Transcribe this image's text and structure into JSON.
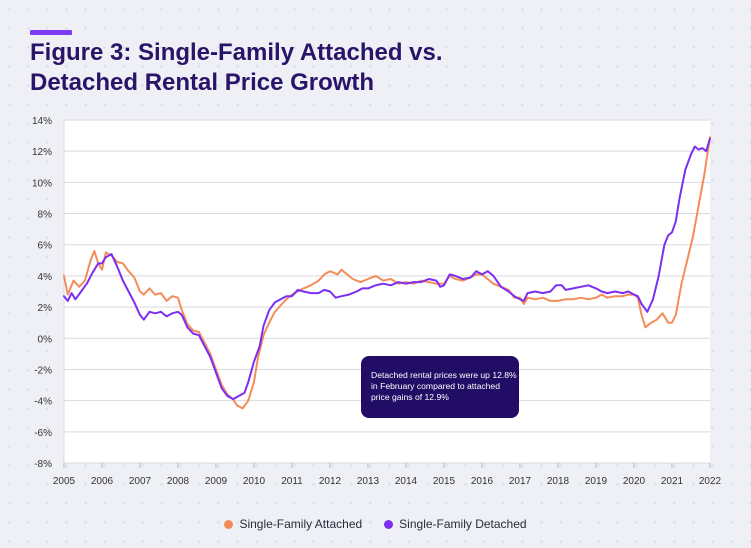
{
  "figure": {
    "title_line1": "Figure 3: Single-Family Attached vs.",
    "title_line2": "Detached Rental Price Growth"
  },
  "callout_text": "Detached rental prices were up 12.8% in February compared to attached price gains of 12.9%",
  "colors": {
    "accent": "#7b3cf3",
    "attached": "#f48c5a",
    "detached": "#7b2ff2",
    "callout_bg": "#210d66"
  },
  "chart_data": {
    "type": "line",
    "ylim": [
      -8,
      14
    ],
    "xlim": [
      2005,
      2022
    ],
    "y_ticks": [
      14,
      12,
      10,
      8,
      6,
      4,
      2,
      0,
      -2,
      -4,
      -6,
      -8
    ],
    "y_tick_labels": [
      "14%",
      "12%",
      "10%",
      "8%",
      "6%",
      "4%",
      "2%",
      "0%",
      "-2%",
      "-4%",
      "-6%",
      "-8%"
    ],
    "x_ticks": [
      2005,
      2006,
      2007,
      2008,
      2009,
      2010,
      2011,
      2012,
      2013,
      2014,
      2015,
      2016,
      2017,
      2018,
      2019,
      2020,
      2021,
      2022
    ],
    "x_tick_labels": [
      "2005",
      "2006",
      "2007",
      "2008",
      "2009",
      "2010",
      "2011",
      "2012",
      "2013",
      "2014",
      "2015",
      "2016",
      "2017",
      "2018",
      "2019",
      "2020",
      "2021",
      "2022"
    ],
    "grid": "horizontal",
    "legend_position": "bottom-center",
    "series": [
      {
        "name": "Single-Family Attached",
        "color": "#f48c5a",
        "points": [
          [
            2005.0,
            4.0
          ],
          [
            2005.1,
            2.8
          ],
          [
            2005.25,
            3.7
          ],
          [
            2005.4,
            3.3
          ],
          [
            2005.55,
            3.7
          ],
          [
            2005.7,
            5.0
          ],
          [
            2005.8,
            5.6
          ],
          [
            2005.9,
            4.8
          ],
          [
            2006.0,
            4.4
          ],
          [
            2006.1,
            5.5
          ],
          [
            2006.25,
            5.3
          ],
          [
            2006.4,
            4.9
          ],
          [
            2006.55,
            4.8
          ],
          [
            2006.7,
            4.3
          ],
          [
            2006.85,
            3.9
          ],
          [
            2007.0,
            3.0
          ],
          [
            2007.1,
            2.8
          ],
          [
            2007.25,
            3.2
          ],
          [
            2007.4,
            2.8
          ],
          [
            2007.55,
            2.9
          ],
          [
            2007.7,
            2.4
          ],
          [
            2007.85,
            2.7
          ],
          [
            2008.0,
            2.6
          ],
          [
            2008.1,
            1.8
          ],
          [
            2008.25,
            0.9
          ],
          [
            2008.4,
            0.5
          ],
          [
            2008.55,
            0.4
          ],
          [
            2008.7,
            -0.3
          ],
          [
            2008.85,
            -1.0
          ],
          [
            2009.0,
            -2.0
          ],
          [
            2009.15,
            -3.0
          ],
          [
            2009.3,
            -3.6
          ],
          [
            2009.45,
            -3.9
          ],
          [
            2009.55,
            -4.3
          ],
          [
            2009.7,
            -4.5
          ],
          [
            2009.85,
            -4.0
          ],
          [
            2010.0,
            -2.8
          ],
          [
            2010.1,
            -1.3
          ],
          [
            2010.25,
            0.2
          ],
          [
            2010.4,
            1.0
          ],
          [
            2010.55,
            1.7
          ],
          [
            2010.7,
            2.1
          ],
          [
            2010.85,
            2.5
          ],
          [
            2011.0,
            2.8
          ],
          [
            2011.15,
            3.0
          ],
          [
            2011.3,
            3.2
          ],
          [
            2011.5,
            3.4
          ],
          [
            2011.7,
            3.7
          ],
          [
            2011.85,
            4.1
          ],
          [
            2012.0,
            4.3
          ],
          [
            2012.2,
            4.1
          ],
          [
            2012.3,
            4.4
          ],
          [
            2012.45,
            4.1
          ],
          [
            2012.6,
            3.8
          ],
          [
            2012.8,
            3.6
          ],
          [
            2013.0,
            3.8
          ],
          [
            2013.2,
            4.0
          ],
          [
            2013.4,
            3.7
          ],
          [
            2013.6,
            3.8
          ],
          [
            2013.8,
            3.5
          ],
          [
            2014.0,
            3.6
          ],
          [
            2014.2,
            3.5
          ],
          [
            2014.4,
            3.7
          ],
          [
            2014.6,
            3.6
          ],
          [
            2014.8,
            3.5
          ],
          [
            2015.0,
            3.5
          ],
          [
            2015.15,
            4.0
          ],
          [
            2015.3,
            3.8
          ],
          [
            2015.5,
            3.7
          ],
          [
            2015.7,
            3.9
          ],
          [
            2015.85,
            4.1
          ],
          [
            2016.0,
            4.1
          ],
          [
            2016.15,
            3.8
          ],
          [
            2016.3,
            3.5
          ],
          [
            2016.5,
            3.3
          ],
          [
            2016.7,
            3.1
          ],
          [
            2016.85,
            2.6
          ],
          [
            2017.0,
            2.6
          ],
          [
            2017.1,
            2.2
          ],
          [
            2017.2,
            2.6
          ],
          [
            2017.4,
            2.5
          ],
          [
            2017.6,
            2.6
          ],
          [
            2017.8,
            2.4
          ],
          [
            2018.0,
            2.4
          ],
          [
            2018.2,
            2.5
          ],
          [
            2018.4,
            2.5
          ],
          [
            2018.6,
            2.6
          ],
          [
            2018.8,
            2.5
          ],
          [
            2019.0,
            2.6
          ],
          [
            2019.15,
            2.8
          ],
          [
            2019.3,
            2.6
          ],
          [
            2019.5,
            2.7
          ],
          [
            2019.7,
            2.7
          ],
          [
            2019.85,
            2.8
          ],
          [
            2020.0,
            2.8
          ],
          [
            2020.1,
            2.6
          ],
          [
            2020.2,
            1.5
          ],
          [
            2020.3,
            0.7
          ],
          [
            2020.45,
            1.0
          ],
          [
            2020.6,
            1.2
          ],
          [
            2020.75,
            1.6
          ],
          [
            2020.9,
            1.0
          ],
          [
            2021.0,
            1.0
          ],
          [
            2021.1,
            1.5
          ],
          [
            2021.25,
            3.5
          ],
          [
            2021.4,
            5.0
          ],
          [
            2021.55,
            6.5
          ],
          [
            2021.7,
            8.5
          ],
          [
            2021.85,
            10.5
          ],
          [
            2022.0,
            12.9
          ]
        ]
      },
      {
        "name": "Single-Family Detached",
        "color": "#7b2ff2",
        "points": [
          [
            2005.0,
            2.7
          ],
          [
            2005.1,
            2.4
          ],
          [
            2005.2,
            2.9
          ],
          [
            2005.3,
            2.5
          ],
          [
            2005.45,
            3.0
          ],
          [
            2005.6,
            3.5
          ],
          [
            2005.75,
            4.2
          ],
          [
            2005.9,
            4.8
          ],
          [
            2006.0,
            4.8
          ],
          [
            2006.1,
            5.2
          ],
          [
            2006.25,
            5.4
          ],
          [
            2006.4,
            4.6
          ],
          [
            2006.55,
            3.7
          ],
          [
            2006.7,
            3.0
          ],
          [
            2006.85,
            2.3
          ],
          [
            2007.0,
            1.5
          ],
          [
            2007.1,
            1.2
          ],
          [
            2007.25,
            1.7
          ],
          [
            2007.4,
            1.6
          ],
          [
            2007.55,
            1.7
          ],
          [
            2007.7,
            1.4
          ],
          [
            2007.85,
            1.6
          ],
          [
            2008.0,
            1.7
          ],
          [
            2008.1,
            1.5
          ],
          [
            2008.25,
            0.7
          ],
          [
            2008.4,
            0.3
          ],
          [
            2008.55,
            0.2
          ],
          [
            2008.7,
            -0.5
          ],
          [
            2008.85,
            -1.2
          ],
          [
            2009.0,
            -2.2
          ],
          [
            2009.15,
            -3.2
          ],
          [
            2009.3,
            -3.7
          ],
          [
            2009.45,
            -3.9
          ],
          [
            2009.6,
            -3.7
          ],
          [
            2009.75,
            -3.5
          ],
          [
            2009.85,
            -2.8
          ],
          [
            2010.0,
            -1.5
          ],
          [
            2010.15,
            -0.5
          ],
          [
            2010.25,
            0.8
          ],
          [
            2010.4,
            1.8
          ],
          [
            2010.55,
            2.3
          ],
          [
            2010.7,
            2.5
          ],
          [
            2010.85,
            2.7
          ],
          [
            2011.0,
            2.7
          ],
          [
            2011.15,
            3.1
          ],
          [
            2011.3,
            3.0
          ],
          [
            2011.5,
            2.9
          ],
          [
            2011.7,
            2.9
          ],
          [
            2011.85,
            3.1
          ],
          [
            2012.0,
            3.0
          ],
          [
            2012.15,
            2.6
          ],
          [
            2012.3,
            2.7
          ],
          [
            2012.5,
            2.8
          ],
          [
            2012.7,
            3.0
          ],
          [
            2012.85,
            3.2
          ],
          [
            2013.0,
            3.2
          ],
          [
            2013.2,
            3.4
          ],
          [
            2013.4,
            3.5
          ],
          [
            2013.6,
            3.4
          ],
          [
            2013.8,
            3.6
          ],
          [
            2014.0,
            3.5
          ],
          [
            2014.2,
            3.6
          ],
          [
            2014.4,
            3.6
          ],
          [
            2014.6,
            3.8
          ],
          [
            2014.8,
            3.7
          ],
          [
            2014.9,
            3.3
          ],
          [
            2015.0,
            3.4
          ],
          [
            2015.15,
            4.1
          ],
          [
            2015.3,
            4.0
          ],
          [
            2015.5,
            3.8
          ],
          [
            2015.7,
            3.9
          ],
          [
            2015.85,
            4.3
          ],
          [
            2016.0,
            4.1
          ],
          [
            2016.15,
            4.3
          ],
          [
            2016.3,
            4.0
          ],
          [
            2016.5,
            3.3
          ],
          [
            2016.7,
            3.0
          ],
          [
            2016.85,
            2.7
          ],
          [
            2017.0,
            2.5
          ],
          [
            2017.1,
            2.4
          ],
          [
            2017.2,
            2.9
          ],
          [
            2017.4,
            3.0
          ],
          [
            2017.6,
            2.9
          ],
          [
            2017.8,
            3.0
          ],
          [
            2017.95,
            3.4
          ],
          [
            2018.1,
            3.4
          ],
          [
            2018.2,
            3.1
          ],
          [
            2018.4,
            3.2
          ],
          [
            2018.6,
            3.3
          ],
          [
            2018.8,
            3.4
          ],
          [
            2019.0,
            3.2
          ],
          [
            2019.15,
            3.0
          ],
          [
            2019.3,
            2.9
          ],
          [
            2019.5,
            3.0
          ],
          [
            2019.7,
            2.9
          ],
          [
            2019.85,
            3.0
          ],
          [
            2020.0,
            2.8
          ],
          [
            2020.1,
            2.7
          ],
          [
            2020.2,
            2.2
          ],
          [
            2020.35,
            1.7
          ],
          [
            2020.5,
            2.5
          ],
          [
            2020.65,
            4.0
          ],
          [
            2020.8,
            6.0
          ],
          [
            2020.9,
            6.6
          ],
          [
            2021.0,
            6.8
          ],
          [
            2021.1,
            7.5
          ],
          [
            2021.2,
            9.0
          ],
          [
            2021.35,
            10.8
          ],
          [
            2021.5,
            11.8
          ],
          [
            2021.6,
            12.3
          ],
          [
            2021.7,
            12.1
          ],
          [
            2021.8,
            12.2
          ],
          [
            2021.9,
            12.0
          ],
          [
            2022.0,
            12.8
          ]
        ]
      }
    ]
  }
}
